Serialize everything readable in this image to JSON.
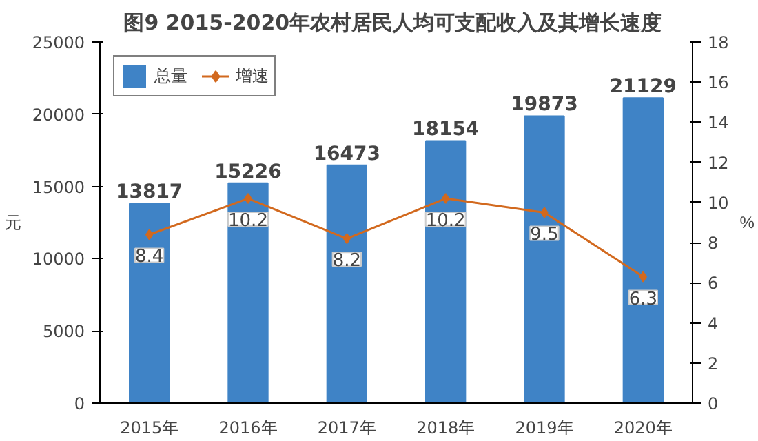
{
  "chart_data": {
    "type": "bar",
    "title": "图9  2015-2020年农村居民人均可支配收入及其增长速度",
    "ylabel": "元",
    "y2label": "%",
    "categories": [
      "2015年",
      "2016年",
      "2017年",
      "2018年",
      "2019年",
      "2020年"
    ],
    "series": [
      {
        "name": "总量",
        "color": "#3f83c6",
        "values": [
          13817,
          15226,
          16473,
          18154,
          19873,
          21129
        ]
      },
      {
        "name": "增速",
        "type": "line",
        "axis": "y2",
        "color": "#d2691e",
        "marker": "diamond",
        "values": [
          8.4,
          10.2,
          8.2,
          10.2,
          9.5,
          6.3
        ]
      }
    ],
    "ylim": [
      0,
      25000
    ],
    "yticks": [
      0,
      5000,
      10000,
      15000,
      20000,
      25000
    ],
    "y2lim": [
      0,
      18
    ],
    "y2ticks": [
      0,
      2,
      4,
      6,
      8,
      10,
      12,
      14,
      16,
      18
    ],
    "data_labels": true,
    "grid": false,
    "legend": "top left"
  }
}
